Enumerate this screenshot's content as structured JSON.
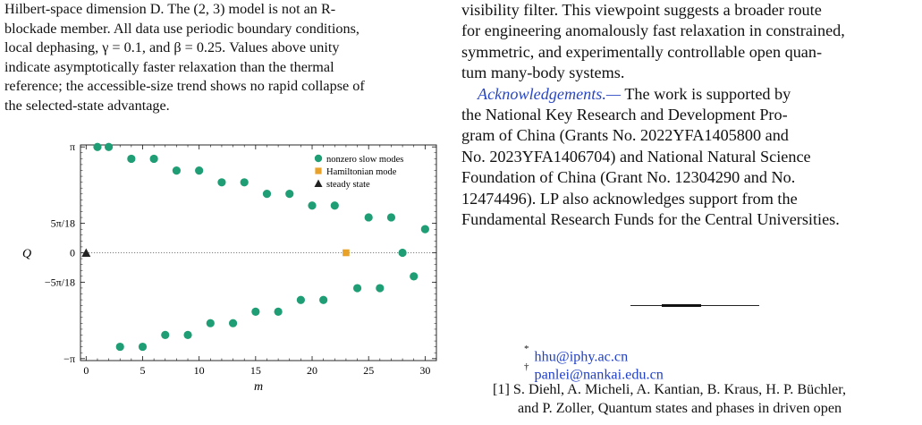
{
  "caption": {
    "line1": "Hilbert-space dimension D. The (2, 3) model is not an R-",
    "line2": "blockade member. All data use periodic boundary conditions,",
    "line3": "local dephasing, γ = 0.1, and β = 0.25. Values above unity",
    "line4": "indicate asymptotically faster relaxation than the thermal",
    "line5": "reference; the accessible-size trend shows no rapid collapse of",
    "line6": "the selected-state advantage."
  },
  "right_column": {
    "line1": "visibility filter. This viewpoint suggests a broader route",
    "line2": "for engineering anomalously fast relaxation in constrained,",
    "line3": "symmetric, and experimentally controllable open quan-",
    "line4": "tum many-body systems.",
    "ack_heading": "Acknowledgements.—",
    "ack_line1_rest": " The work is supported by",
    "ack_line2": "the National Key Research and Development Pro-",
    "ack_line3": "gram of China (Grants No.   2022YFA1405800 and",
    "ack_line4": "No. 2023YFA1406704) and National Natural Science",
    "ack_line5": "Foundation of China (Grant No.   12304290 and No.",
    "ack_line6": "12474496).   LP also acknowledges support from the",
    "ack_line7": "Fundamental Research Funds for the Central Universities."
  },
  "footnotes": [
    {
      "mark": "*",
      "email": "hhu@iphy.ac.cn"
    },
    {
      "mark": "†",
      "email": "panlei@nankai.edu.cn"
    }
  ],
  "reference": {
    "label": "[1]",
    "line1": "S. Diehl, A. Micheli, A. Kantian, B. Kraus, H. P. Büchler,",
    "line2": "and P. Zoller, Quantum states and phases in driven open"
  },
  "colors": {
    "slow": "#1f9e75",
    "hamiltonian": "#e8a22a",
    "steady": "#222222",
    "link": "#1f3fc8"
  },
  "chart_data": {
    "type": "scatter",
    "xlabel": "m",
    "ylabel": "Q",
    "xlim": [
      -0.5,
      31
    ],
    "ylim": [
      -3.2,
      3.2
    ],
    "x_ticks": [
      0,
      5,
      10,
      15,
      20,
      25,
      30
    ],
    "x_tick_labels": [
      "0",
      "5",
      "10",
      "15",
      "20",
      "25",
      "30"
    ],
    "y_ticks": [
      -3.14159,
      -0.87266,
      0,
      0.87266,
      3.14159
    ],
    "y_tick_labels": [
      "−π",
      "−5π/18",
      "0",
      "5π/18",
      "π"
    ],
    "grid": false,
    "legend_position": "top-right",
    "series": [
      {
        "name": "nonzero slow modes",
        "marker": "circle",
        "points": [
          [
            1,
            3.14
          ],
          [
            2,
            3.14
          ],
          [
            3,
            -2.79
          ],
          [
            4,
            2.79
          ],
          [
            5,
            -2.79
          ],
          [
            6,
            2.79
          ],
          [
            7,
            -2.44
          ],
          [
            8,
            2.44
          ],
          [
            9,
            -2.44
          ],
          [
            10,
            2.44
          ],
          [
            11,
            -2.09
          ],
          [
            12,
            2.09
          ],
          [
            13,
            -2.09
          ],
          [
            14,
            2.09
          ],
          [
            15,
            -1.75
          ],
          [
            16,
            1.75
          ],
          [
            17,
            -1.75
          ],
          [
            18,
            1.75
          ],
          [
            19,
            -1.4
          ],
          [
            20,
            1.4
          ],
          [
            21,
            -1.4
          ],
          [
            22,
            1.4
          ],
          [
            24,
            -1.05
          ],
          [
            25,
            1.05
          ],
          [
            26,
            -1.05
          ],
          [
            27,
            1.05
          ],
          [
            28,
            0.0
          ],
          [
            29,
            -0.7
          ],
          [
            30,
            0.7
          ]
        ]
      },
      {
        "name": "Hamiltonian mode",
        "marker": "square",
        "points": [
          [
            23,
            0.0
          ]
        ]
      },
      {
        "name": "steady state",
        "marker": "triangle",
        "points": [
          [
            0,
            0.0
          ]
        ]
      }
    ]
  }
}
